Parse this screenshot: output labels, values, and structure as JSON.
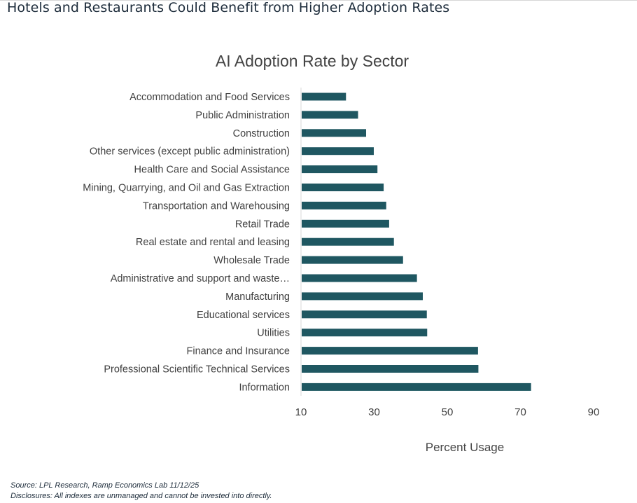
{
  "header": {
    "headline": "Hotels and Restaurants Could Benefit from Higher Adoption Rates"
  },
  "chart_data": {
    "type": "bar",
    "orientation": "horizontal",
    "title": "AI Adoption Rate by Sector",
    "xlabel": "Percent Usage",
    "ylabel": "",
    "xlim": [
      10,
      90
    ],
    "xticks": [
      "10",
      "30",
      "50",
      "70",
      "90"
    ],
    "grid": false,
    "legend": "none",
    "bar_color": "#1f5761",
    "categories": [
      "Accommodation and Food Services",
      "Public Administration",
      "Construction",
      "Other services (except public administration)",
      "Health Care and Social Assistance",
      "Mining, Quarrying, and Oil and Gas Extraction",
      "Transportation and Warehousing",
      "Retail Trade",
      "Real estate and rental and leasing",
      "Wholesale Trade",
      "Administrative and support and waste…",
      "Manufacturing",
      "Educational services",
      "Utilities",
      "Finance and Insurance",
      "Professional Scientific Technical Services",
      "Information"
    ],
    "values": [
      22.3,
      25.6,
      27.8,
      29.9,
      30.9,
      32.6,
      33.3,
      34.1,
      35.4,
      37.9,
      41.7,
      43.3,
      44.4,
      44.5,
      58.4,
      58.5,
      72.9
    ]
  },
  "footer": {
    "source": "Source: LPL Research, Ramp Economics Lab 11/12/25",
    "disclosure": "Disclosures: All indexes are unmanaged and cannot be invested into directly."
  }
}
